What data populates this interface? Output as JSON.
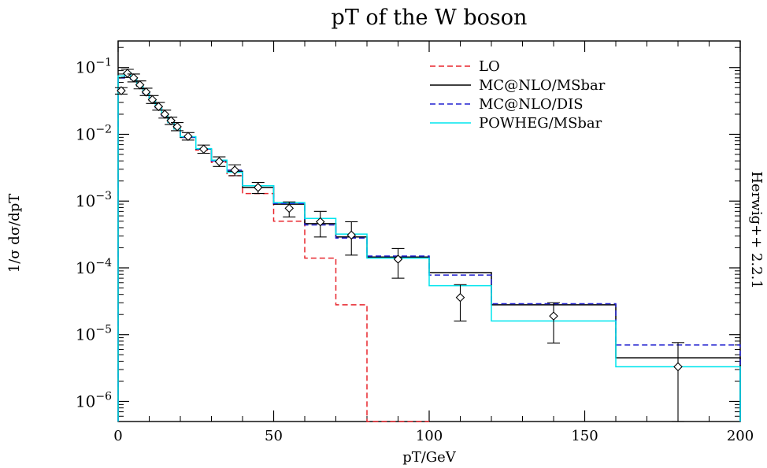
{
  "chart_data": {
    "type": "histogram",
    "title": "pT of the W boson",
    "xlabel": "pT/GeV",
    "ylabel": "1/σ dσ/dpT",
    "side_label": "Herwig++ 2.2.1",
    "x_scale": "linear",
    "y_scale": "log",
    "xlim": [
      0,
      200
    ],
    "ylim": [
      5e-07,
      0.25
    ],
    "x_ticks": [
      0,
      50,
      100,
      150,
      200
    ],
    "y_ticks": [
      {
        "value": 1e-06,
        "base": "10",
        "exp": "−6"
      },
      {
        "value": 1e-05,
        "base": "10",
        "exp": "−5"
      },
      {
        "value": 0.0001,
        "base": "10",
        "exp": "−4"
      },
      {
        "value": 0.001,
        "base": "10",
        "exp": "−3"
      },
      {
        "value": 0.01,
        "base": "10",
        "exp": "−2"
      },
      {
        "value": 0.1,
        "base": "10",
        "exp": "−1"
      }
    ],
    "legend_position": "top-right",
    "series": [
      {
        "name": "LO",
        "color": "#e8262d",
        "dash": "dashed",
        "bins": [
          0,
          2,
          4,
          6,
          8,
          10,
          12,
          14,
          16,
          18,
          20,
          25,
          30,
          35,
          40,
          50,
          60,
          70,
          80,
          100
        ],
        "values": [
          0.07,
          0.085,
          0.068,
          0.054,
          0.042,
          0.032,
          0.025,
          0.019,
          0.015,
          0.012,
          0.009,
          0.0058,
          0.0038,
          0.0024,
          0.0013,
          0.0005,
          0.00014,
          2.8e-05,
          5e-07
        ]
      },
      {
        "name": "MC@NLO/MSbar",
        "color": "#000000",
        "dash": "solid",
        "bins": [
          0,
          2,
          4,
          6,
          8,
          10,
          12,
          14,
          16,
          18,
          20,
          25,
          30,
          35,
          40,
          50,
          60,
          70,
          80,
          100,
          120,
          160,
          200
        ],
        "values": [
          0.07,
          0.082,
          0.067,
          0.053,
          0.041,
          0.032,
          0.025,
          0.019,
          0.015,
          0.012,
          0.009,
          0.006,
          0.004,
          0.0028,
          0.0016,
          0.0009,
          0.00046,
          0.00029,
          0.000145,
          8.5e-05,
          2.8e-05,
          4.5e-06
        ]
      },
      {
        "name": "MC@NLO/DIS",
        "color": "#2020d0",
        "dash": "dashed",
        "bins": [
          0,
          2,
          4,
          6,
          8,
          10,
          12,
          14,
          16,
          18,
          20,
          25,
          30,
          35,
          40,
          50,
          60,
          70,
          80,
          100,
          120,
          160,
          200
        ],
        "values": [
          0.07,
          0.082,
          0.067,
          0.053,
          0.041,
          0.032,
          0.025,
          0.019,
          0.015,
          0.012,
          0.009,
          0.006,
          0.004,
          0.0029,
          0.0017,
          0.00092,
          0.00044,
          0.00028,
          0.00015,
          7.8e-05,
          2.9e-05,
          7e-06
        ]
      },
      {
        "name": "POWHEG/MSbar",
        "color": "#00e5ee",
        "dash": "solid",
        "bins": [
          0,
          2,
          4,
          6,
          8,
          10,
          12,
          14,
          16,
          18,
          20,
          25,
          30,
          35,
          40,
          50,
          60,
          70,
          80,
          100,
          120,
          160,
          200
        ],
        "values": [
          0.075,
          0.085,
          0.068,
          0.054,
          0.042,
          0.033,
          0.026,
          0.02,
          0.015,
          0.012,
          0.0092,
          0.0061,
          0.0041,
          0.0027,
          0.0017,
          0.00095,
          0.00055,
          0.00032,
          0.00014,
          5.4e-05,
          1.6e-05,
          3.3e-06
        ]
      }
    ],
    "data_points": [
      {
        "x": 1,
        "y": 0.045,
        "lo": 0.04,
        "hi": 0.05
      },
      {
        "x": 3,
        "y": 0.082,
        "lo": 0.071,
        "hi": 0.094
      },
      {
        "x": 5,
        "y": 0.07,
        "lo": 0.061,
        "hi": 0.08
      },
      {
        "x": 7,
        "y": 0.055,
        "lo": 0.048,
        "hi": 0.063
      },
      {
        "x": 9,
        "y": 0.043,
        "lo": 0.038,
        "hi": 0.049
      },
      {
        "x": 11,
        "y": 0.033,
        "lo": 0.029,
        "hi": 0.038
      },
      {
        "x": 13,
        "y": 0.026,
        "lo": 0.023,
        "hi": 0.03
      },
      {
        "x": 15,
        "y": 0.02,
        "lo": 0.0175,
        "hi": 0.023
      },
      {
        "x": 17,
        "y": 0.016,
        "lo": 0.014,
        "hi": 0.018
      },
      {
        "x": 19,
        "y": 0.013,
        "lo": 0.0113,
        "hi": 0.015
      },
      {
        "x": 22.5,
        "y": 0.0093,
        "lo": 0.0082,
        "hi": 0.0106
      },
      {
        "x": 27.5,
        "y": 0.006,
        "lo": 0.0052,
        "hi": 0.0069
      },
      {
        "x": 32.5,
        "y": 0.0039,
        "lo": 0.0033,
        "hi": 0.0046
      },
      {
        "x": 37.5,
        "y": 0.0029,
        "lo": 0.0024,
        "hi": 0.0035
      },
      {
        "x": 45,
        "y": 0.0016,
        "lo": 0.0013,
        "hi": 0.0019
      },
      {
        "x": 55,
        "y": 0.00078,
        "lo": 0.00058,
        "hi": 0.00097
      },
      {
        "x": 65,
        "y": 0.00049,
        "lo": 0.00029,
        "hi": 0.0007
      },
      {
        "x": 75,
        "y": 0.00031,
        "lo": 0.000155,
        "hi": 0.00049
      },
      {
        "x": 90,
        "y": 0.000135,
        "lo": 7e-05,
        "hi": 0.000195
      },
      {
        "x": 110,
        "y": 3.6e-05,
        "lo": 1.6e-05,
        "hi": 5.6e-05
      },
      {
        "x": 140,
        "y": 1.9e-05,
        "lo": 7.5e-06,
        "hi": 3e-05
      },
      {
        "x": 180,
        "y": 3.3e-06,
        "lo": 5e-07,
        "hi": 7.6e-06
      }
    ]
  }
}
